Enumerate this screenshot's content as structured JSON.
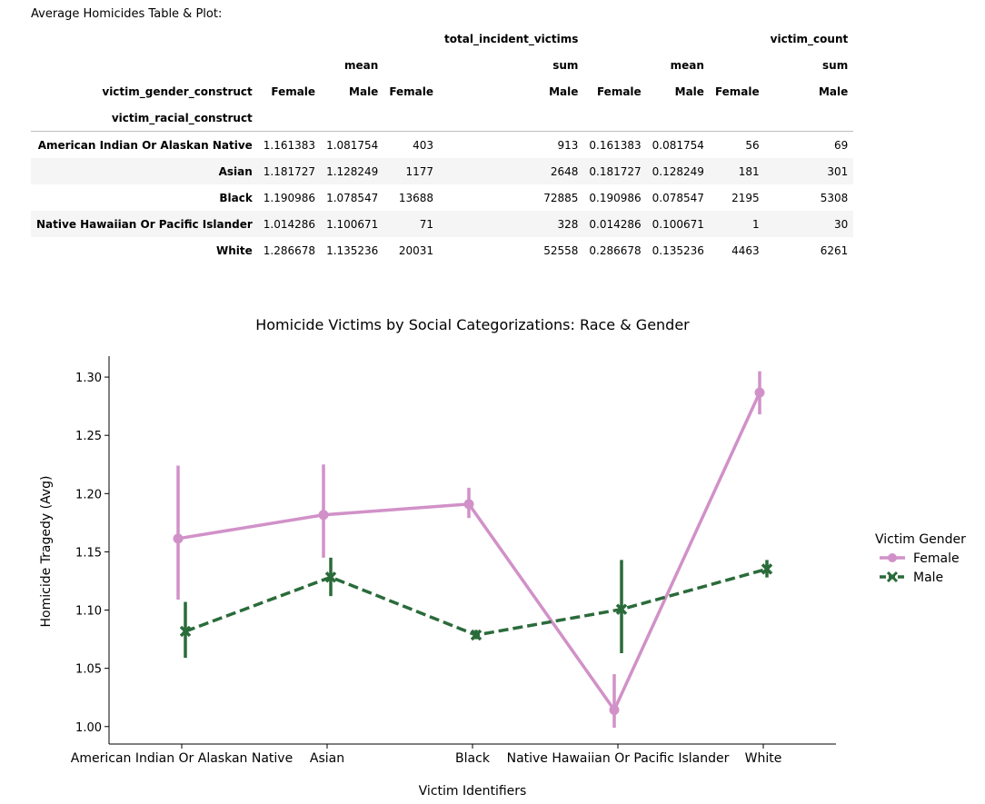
{
  "caption": "Average Homicides Table & Plot:",
  "table": {
    "top_headers": [
      "total_incident_victims",
      "victim_count"
    ],
    "stat_headers": [
      "mean",
      "sum",
      "mean",
      "sum"
    ],
    "column_index_name": "victim_gender_construct",
    "row_index_name": "victim_racial_construct",
    "gender_headers": [
      "Female",
      "Male",
      "Female",
      "Male",
      "Female",
      "Male",
      "Female",
      "Male"
    ],
    "rows": [
      {
        "label": "American Indian Or Alaskan Native",
        "cells": [
          "1.161383",
          "1.081754",
          "403",
          "913",
          "0.161383",
          "0.081754",
          "56",
          "69"
        ]
      },
      {
        "label": "Asian",
        "cells": [
          "1.181727",
          "1.128249",
          "1177",
          "2648",
          "0.181727",
          "0.128249",
          "181",
          "301"
        ]
      },
      {
        "label": "Black",
        "cells": [
          "1.190986",
          "1.078547",
          "13688",
          "72885",
          "0.190986",
          "0.078547",
          "2195",
          "5308"
        ]
      },
      {
        "label": "Native Hawaiian Or Pacific Islander",
        "cells": [
          "1.014286",
          "1.100671",
          "71",
          "328",
          "0.014286",
          "0.100671",
          "1",
          "30"
        ]
      },
      {
        "label": "White",
        "cells": [
          "1.286678",
          "1.135236",
          "20031",
          "52558",
          "0.286678",
          "0.135236",
          "4463",
          "6261"
        ]
      }
    ]
  },
  "chart_data": {
    "type": "line",
    "title": "Homicide Victims by Social Categorizations: Race & Gender",
    "xlabel": "Victim Identifiers",
    "ylabel": "Homicide Tragedy (Avg)",
    "categories": [
      "American Indian Or Alaskan Native",
      "Asian",
      "Black",
      "Native Hawaiian Or Pacific Islander",
      "White"
    ],
    "ylim": [
      0.985,
      1.318
    ],
    "yticks": [
      1.0,
      1.05,
      1.1,
      1.15,
      1.2,
      1.25,
      1.3
    ],
    "ytick_labels": [
      "1.00",
      "1.05",
      "1.10",
      "1.15",
      "1.20",
      "1.25",
      "1.30"
    ],
    "legend": {
      "title": "Victim Gender",
      "position": "right"
    },
    "grid": false,
    "series": [
      {
        "name": "Female",
        "color": "#d191c8",
        "marker": "circle",
        "linestyle": "solid",
        "values": [
          1.161383,
          1.181727,
          1.190986,
          1.014286,
          1.286678
        ],
        "ci_low": [
          1.109,
          1.145,
          1.179,
          0.999,
          1.268
        ],
        "ci_high": [
          1.224,
          1.225,
          1.205,
          1.045,
          1.305
        ]
      },
      {
        "name": "Male",
        "color": "#2a6b3a",
        "marker": "x",
        "linestyle": "dashed",
        "values": [
          1.081754,
          1.128249,
          1.078547,
          1.100671,
          1.135236
        ],
        "ci_low": [
          1.059,
          1.112,
          1.075,
          1.063,
          1.128
        ],
        "ci_high": [
          1.107,
          1.145,
          1.083,
          1.143,
          1.143
        ]
      }
    ]
  }
}
